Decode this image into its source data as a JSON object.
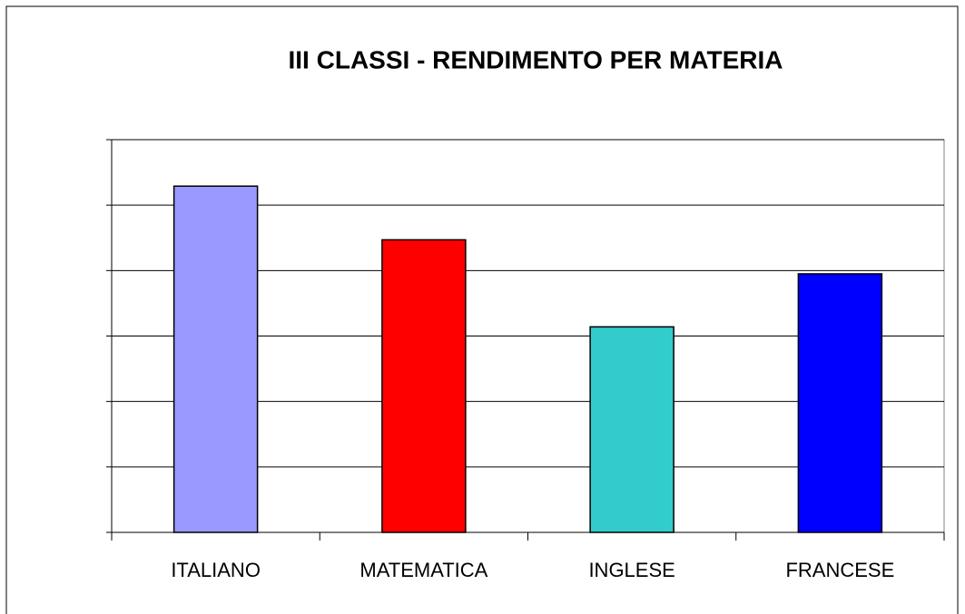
{
  "chart_data": {
    "type": "bar",
    "title": "III CLASSI - RENDIMENTO PER MATERIA",
    "categories": [
      "ITALIANO",
      "MATEMATICA",
      "INGLESE",
      "FRANCESE"
    ],
    "values": [
      5.29,
      4.47,
      3.14,
      3.95
    ],
    "colors": [
      "#9999ff",
      "#ff0000",
      "#33cccc",
      "#0000ff"
    ],
    "ylim": [
      0,
      6
    ],
    "yticks": [
      0,
      1,
      2,
      3,
      4,
      5,
      6
    ],
    "grid": true
  }
}
